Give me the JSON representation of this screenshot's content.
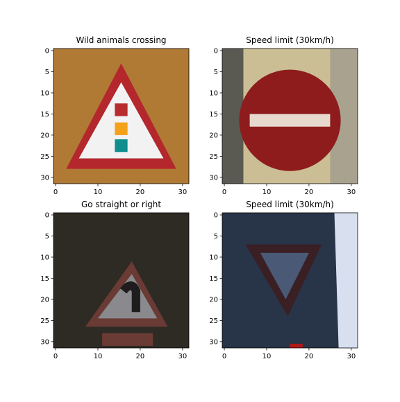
{
  "chart_data": [
    {
      "type": "image",
      "title": "Wild animals crossing",
      "xlim": [
        -0.5,
        31.5
      ],
      "ylim": [
        31.5,
        -0.5
      ],
      "xticks": [
        0,
        10,
        20,
        30
      ],
      "yticks": [
        0,
        5,
        10,
        15,
        20,
        25,
        30
      ],
      "background": "#b07a35",
      "content_icon": "warning-triangle-sign-icon",
      "sign_colors": {
        "border": "#b3272d",
        "fill": "#f3f2f2",
        "accents": [
          "#b72d2f",
          "#f3a21a",
          "#0f8e8d"
        ]
      }
    },
    {
      "type": "image",
      "title": "Speed limit (30km/h)",
      "xlim": [
        -0.5,
        31.5
      ],
      "ylim": [
        31.5,
        -0.5
      ],
      "xticks": [
        0,
        10,
        20,
        30
      ],
      "yticks": [
        0,
        5,
        10,
        15,
        20,
        25,
        30
      ],
      "background": "#cbbe95",
      "content_icon": "no-entry-sign-icon",
      "sign_colors": {
        "fill": "#8e1c1d",
        "bar": "#e8d9cf"
      }
    },
    {
      "type": "image",
      "title": "Go straight or right",
      "xlim": [
        -0.5,
        31.5
      ],
      "ylim": [
        31.5,
        -0.5
      ],
      "xticks": [
        0,
        10,
        20,
        30
      ],
      "yticks": [
        0,
        5,
        10,
        15,
        20,
        25,
        30
      ],
      "background": "#2e2a24",
      "content_icon": "curve-warning-sign-icon",
      "sign_colors": {
        "border": "#6a3a34",
        "fill": "#8a8a8e",
        "symbol": "#1e1c1c"
      }
    },
    {
      "type": "image",
      "title": "Speed limit (30km/h)",
      "xlim": [
        -0.5,
        31.5
      ],
      "ylim": [
        31.5,
        -0.5
      ],
      "xticks": [
        0,
        10,
        20,
        30
      ],
      "yticks": [
        0,
        5,
        10,
        15,
        20,
        25,
        30
      ],
      "background": "#283448",
      "content_icon": "yield-sign-icon",
      "sign_colors": {
        "border": "#3a1f24",
        "fill": "#4a5a76",
        "sky": "#d8e0f0"
      }
    }
  ]
}
